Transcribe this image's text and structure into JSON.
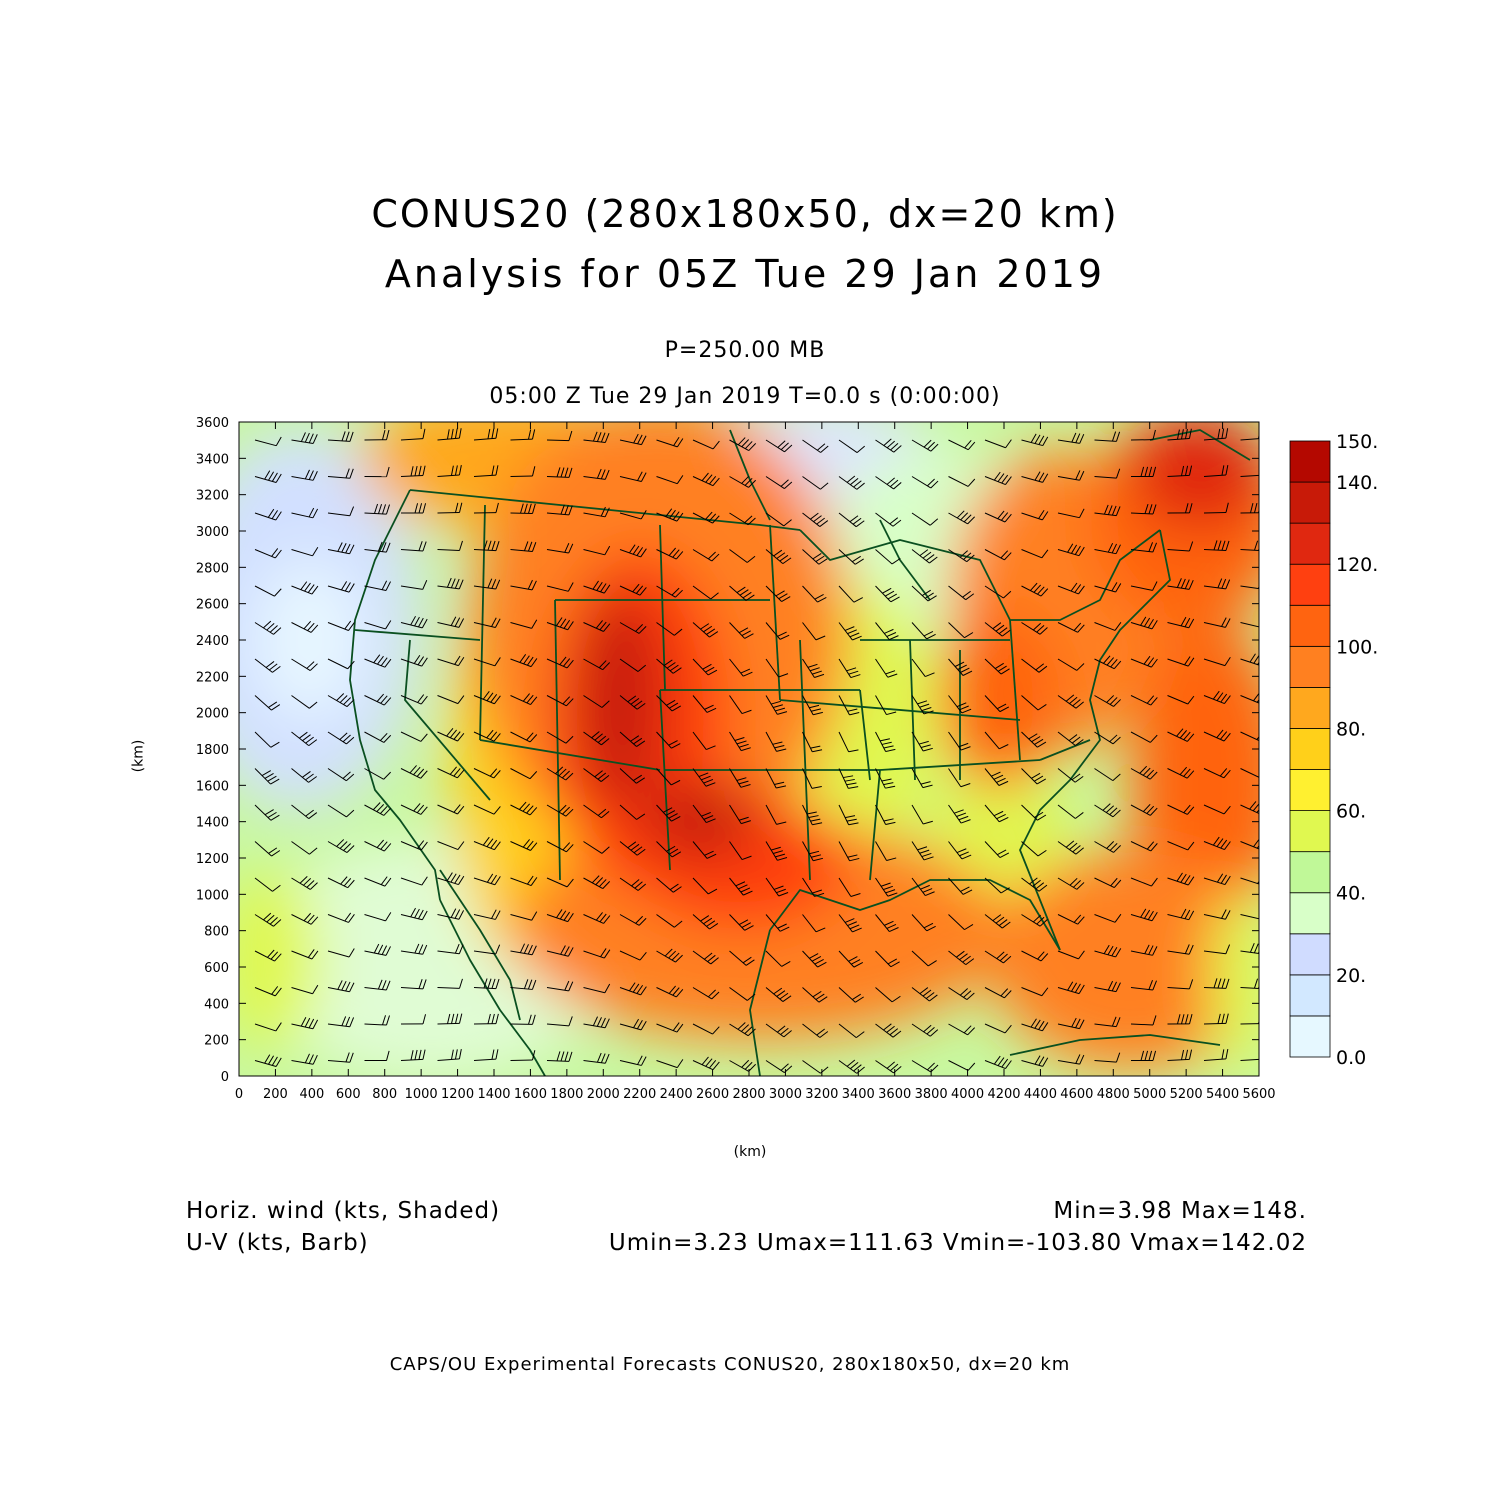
{
  "title": {
    "line1": "CONUS20 (280x180x50, dx=20 km)",
    "line2": "Analysis for 05Z Tue 29 Jan 2019"
  },
  "level_label": "P=250.00 MB",
  "valid_time_label": "05:00 Z Tue 29 Jan 2019    T=0.0 s (0:00:00)",
  "axes": {
    "x_label": "(km)",
    "y_label": "(km)",
    "x_range_km": [
      0,
      5600
    ],
    "y_range_km": [
      0,
      3600
    ],
    "x_ticks": [
      "0",
      "200",
      "400",
      "600",
      "800",
      "1000",
      "1200",
      "1400",
      "1600",
      "1800",
      "2000",
      "2200",
      "2400",
      "2600",
      "2800",
      "3000",
      "3200",
      "3400",
      "3600",
      "3800",
      "4000",
      "4200",
      "4400",
      "4600",
      "4800",
      "5000",
      "5200",
      "5400",
      "5600"
    ],
    "y_ticks": [
      "0",
      "200",
      "400",
      "600",
      "800",
      "1000",
      "1200",
      "1400",
      "1600",
      "1800",
      "2000",
      "2200",
      "2400",
      "2600",
      "2800",
      "3000",
      "3200",
      "3400",
      "3600"
    ]
  },
  "colorbar": {
    "levels": [
      "0.0",
      "10.",
      "20.",
      "30.",
      "40.",
      "50.",
      "60.",
      "70.",
      "80.",
      "90.",
      "100.",
      "110.",
      "120.",
      "130.",
      "140.",
      "150."
    ],
    "labels": [
      "0.0",
      "20.",
      "40.",
      "60.",
      "80.",
      "100.",
      "120.",
      "140.",
      "150."
    ],
    "colors": [
      "#e6f8ff",
      "#d2e8ff",
      "#d0dcff",
      "#d8ffc8",
      "#c0f898",
      "#e0f850",
      "#fff030",
      "#ffd01a",
      "#ffa81e",
      "#ff8020",
      "#ff6410",
      "#ff4010",
      "#e02810",
      "#c81a08",
      "#b40800"
    ]
  },
  "field_labels": {
    "shaded": "Horiz. wind (kts, Shaded)",
    "barb": "U-V (kts, Barb)"
  },
  "stats": {
    "minmax": "Min=3.98 Max=148.",
    "uv": "Umin=3.23 Umax=111.63 Vmin=-103.80 Vmax=142.02"
  },
  "footer": "CAPS/OU Experimental Forecasts  CONUS20, 280x180x50, dx=20 km",
  "map_style": {
    "boundary_color": "#0a5020",
    "barb_color": "#000000"
  }
}
